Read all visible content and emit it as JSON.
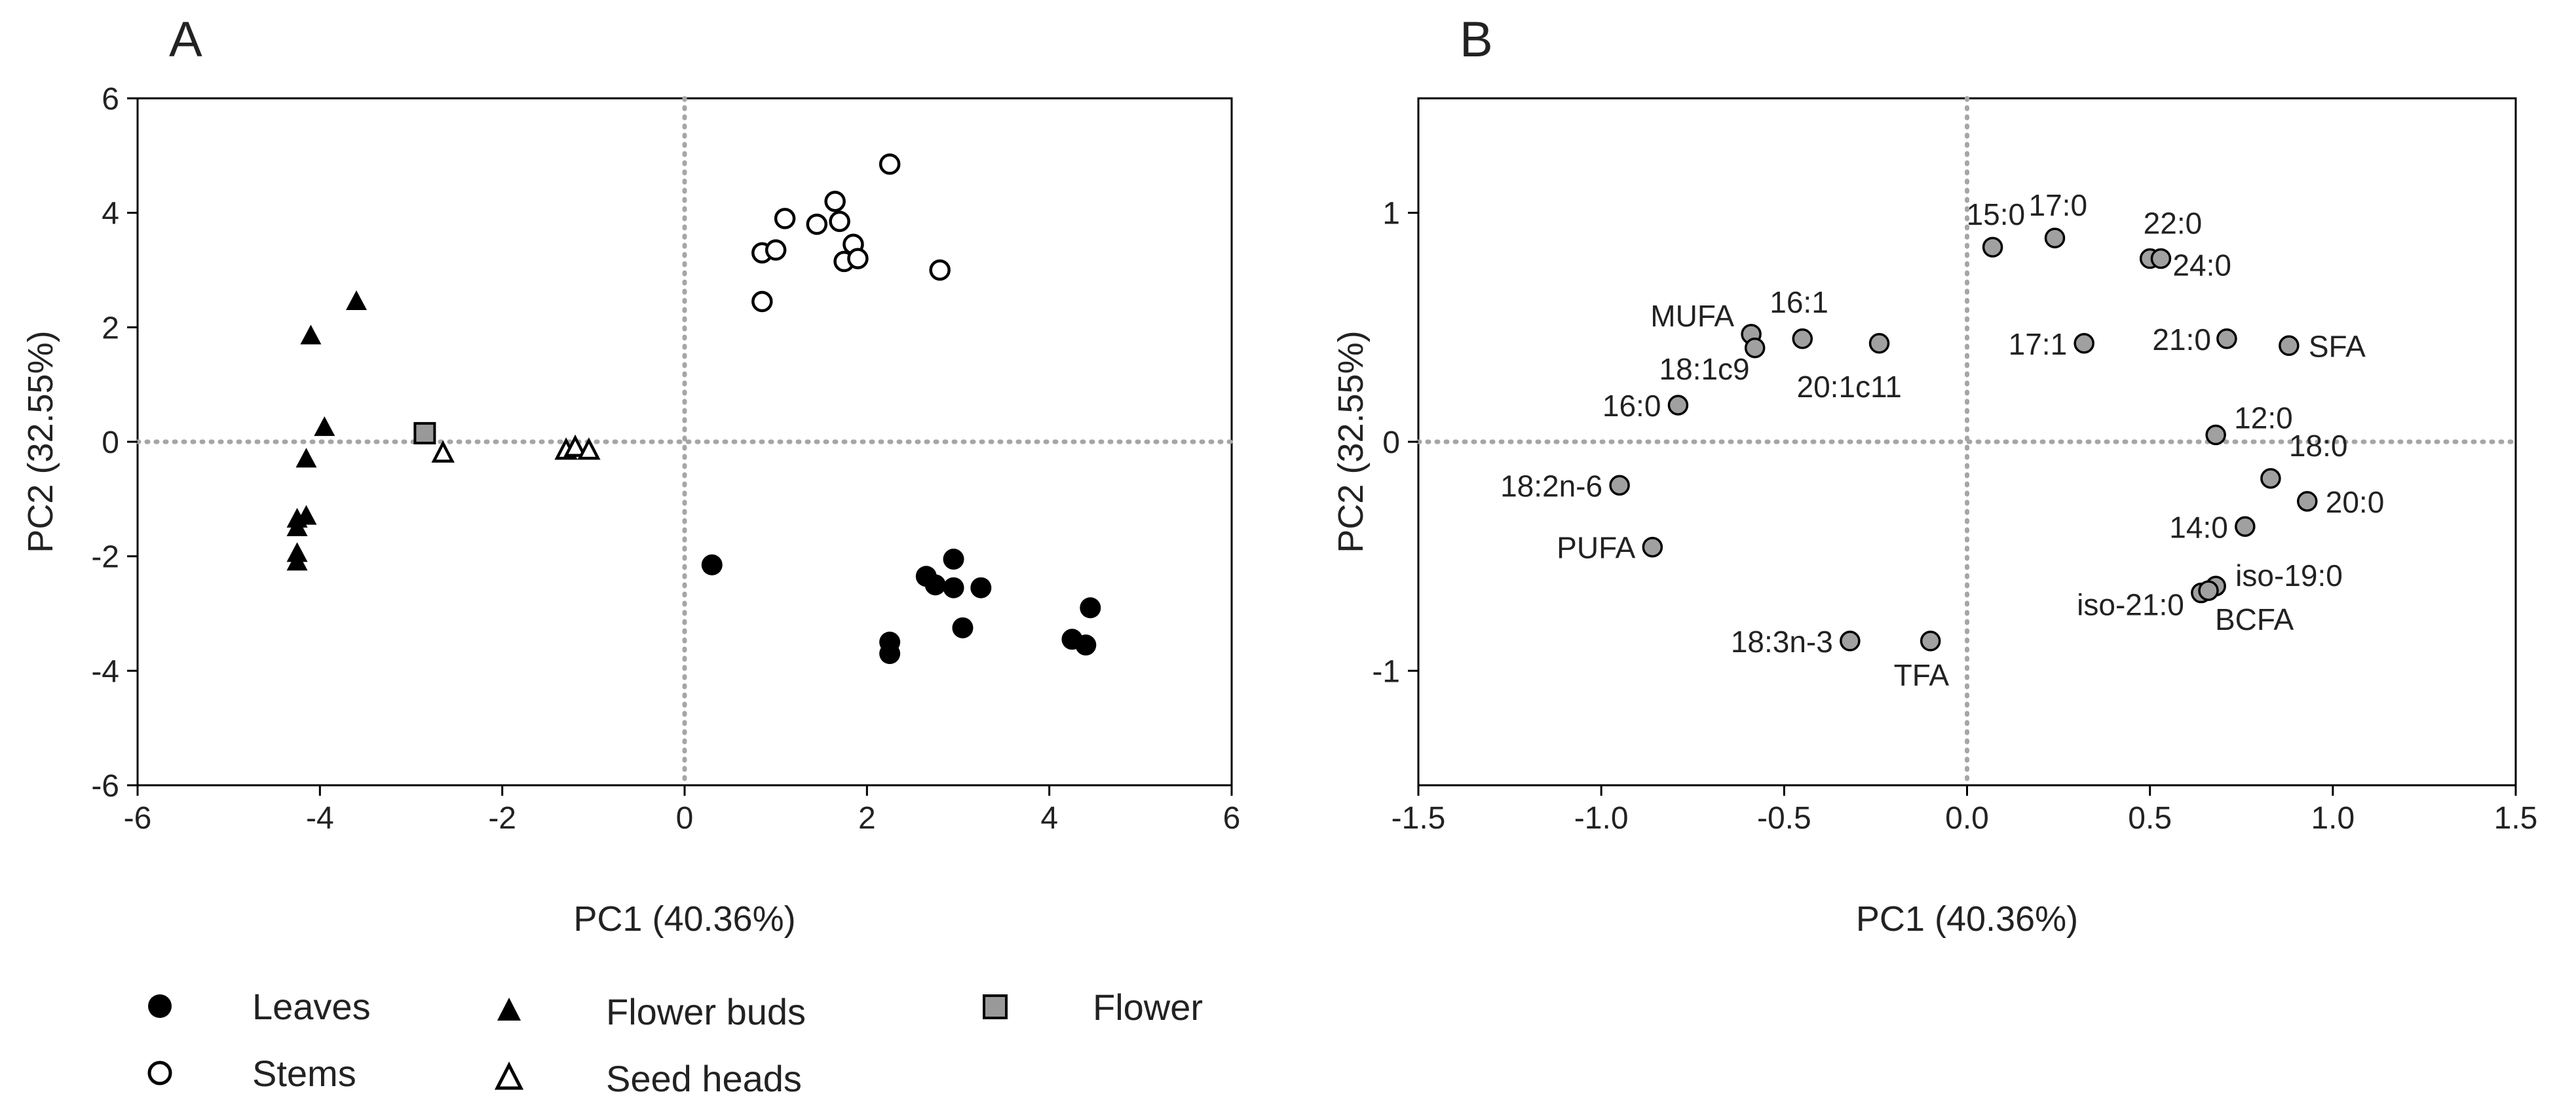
{
  "chart_data": [
    {
      "type": "scatter",
      "panel": "A",
      "xlabel": "PC1 (40.36%)",
      "ylabel": "PC2 (32.55%)",
      "xlim": [
        -6,
        6
      ],
      "ylim": [
        -6,
        6
      ],
      "xticks": [
        -6,
        -4,
        -2,
        0,
        2,
        4,
        6
      ],
      "yticks": [
        -6,
        -4,
        -2,
        0,
        2,
        4,
        6
      ],
      "reference_lines": {
        "x": 0,
        "y": 0,
        "style": "dotted"
      },
      "series": [
        {
          "name": "Leaves",
          "marker": "filled-circle",
          "color": "#000000",
          "points": [
            [
              0.3,
              -2.15
            ],
            [
              2.25,
              -3.5
            ],
            [
              2.25,
              -3.7
            ],
            [
              2.65,
              -2.35
            ],
            [
              2.75,
              -2.5
            ],
            [
              2.95,
              -2.05
            ],
            [
              2.95,
              -2.55
            ],
            [
              3.05,
              -3.25
            ],
            [
              3.25,
              -2.55
            ],
            [
              4.25,
              -3.45
            ],
            [
              4.4,
              -3.55
            ],
            [
              4.45,
              -2.9
            ]
          ]
        },
        {
          "name": "Stems",
          "marker": "open-circle",
          "color": "#000000",
          "points": [
            [
              0.85,
              3.3
            ],
            [
              0.85,
              2.45
            ],
            [
              1.0,
              3.35
            ],
            [
              1.1,
              3.9
            ],
            [
              1.45,
              3.8
            ],
            [
              1.65,
              4.2
            ],
            [
              1.7,
              3.85
            ],
            [
              1.75,
              3.15
            ],
            [
              1.85,
              3.45
            ],
            [
              1.9,
              3.2
            ],
            [
              2.25,
              4.85
            ],
            [
              2.8,
              3.0
            ]
          ]
        },
        {
          "name": "Flower buds",
          "marker": "filled-triangle",
          "color": "#000000",
          "points": [
            [
              -3.6,
              2.45
            ],
            [
              -4.1,
              1.85
            ],
            [
              -3.95,
              0.25
            ],
            [
              -4.15,
              -0.3
            ],
            [
              -4.25,
              -1.35
            ],
            [
              -4.15,
              -1.3
            ],
            [
              -4.25,
              -1.5
            ],
            [
              -4.25,
              -1.95
            ],
            [
              -4.25,
              -2.1
            ]
          ]
        },
        {
          "name": "Seed heads",
          "marker": "open-triangle",
          "color": "#000000",
          "points": [
            [
              -2.65,
              -0.2
            ],
            [
              -1.3,
              -0.15
            ],
            [
              -1.2,
              -0.1
            ],
            [
              -1.05,
              -0.15
            ]
          ]
        },
        {
          "name": "Flower",
          "marker": "gray-square",
          "color": "#999999",
          "points": [
            [
              -2.85,
              0.15
            ]
          ]
        }
      ]
    },
    {
      "type": "scatter",
      "panel": "B",
      "xlabel": "PC1 (40.36%)",
      "ylabel": "PC2 (32.55%)",
      "xlim": [
        -1.5,
        1.5
      ],
      "ylim": [
        -1.5,
        1.5
      ],
      "xticks": [
        "-1.5",
        "-1.0",
        "-0.5",
        "0.0",
        "0.5",
        "1.0",
        "1.5"
      ],
      "yticks": [
        "-1",
        "0",
        "1"
      ],
      "reference_lines": {
        "x": 0,
        "y": 0,
        "style": "dotted"
      },
      "marker_color": "#a0a0a0",
      "points": [
        {
          "label": "15:0",
          "x": 0.07,
          "y": 0.85
        },
        {
          "label": "17:0",
          "x": 0.24,
          "y": 0.89
        },
        {
          "label": "22:0",
          "x": 0.5,
          "y": 0.8
        },
        {
          "label": "24:0",
          "x": 0.53,
          "y": 0.8
        },
        {
          "label": "MUFA",
          "x": -0.59,
          "y": 0.47
        },
        {
          "label": "16:1",
          "x": -0.45,
          "y": 0.45
        },
        {
          "label": "18:1c9",
          "x": -0.58,
          "y": 0.41
        },
        {
          "label": "20:1c11",
          "x": -0.24,
          "y": 0.43
        },
        {
          "label": "17:1",
          "x": 0.32,
          "y": 0.43
        },
        {
          "label": "21:0",
          "x": 0.71,
          "y": 0.45
        },
        {
          "label": "SFA",
          "x": 0.88,
          "y": 0.42
        },
        {
          "label": "16:0",
          "x": -0.79,
          "y": 0.16
        },
        {
          "label": "12:0",
          "x": 0.68,
          "y": 0.03
        },
        {
          "label": "18:2n-6",
          "x": -0.95,
          "y": -0.19
        },
        {
          "label": "18:0",
          "x": 0.83,
          "y": -0.16
        },
        {
          "label": "20:0",
          "x": 0.93,
          "y": -0.26
        },
        {
          "label": "PUFA",
          "x": -0.86,
          "y": -0.46
        },
        {
          "label": "14:0",
          "x": 0.76,
          "y": -0.37
        },
        {
          "label": "iso-19:0",
          "x": 0.68,
          "y": -0.63
        },
        {
          "label": "iso-21:0",
          "x": 0.64,
          "y": -0.66
        },
        {
          "label": "BCFA",
          "x": 0.66,
          "y": -0.65
        },
        {
          "label": "18:3n-3",
          "x": -0.32,
          "y": -0.87
        },
        {
          "label": "TFA",
          "x": -0.1,
          "y": -0.87
        }
      ]
    }
  ]
}
